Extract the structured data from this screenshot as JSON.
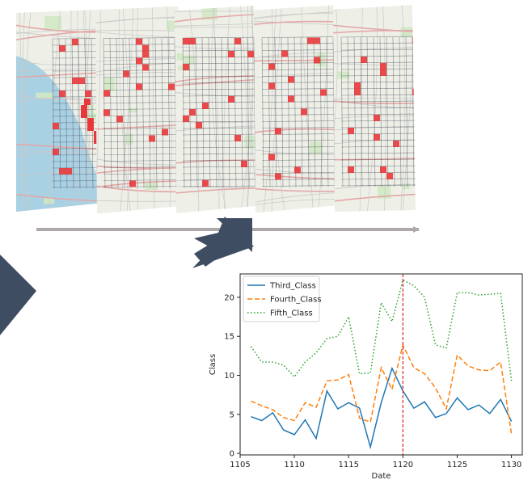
{
  "illustration": {
    "map_tiles": 5,
    "colors": {
      "water": "#a9d1e4",
      "land": "#eef0e8",
      "park": "#cfe8c4",
      "road_major": "#e3a7a7",
      "road_minor": "#c9c9c9",
      "grid": "#2f3240",
      "hotspot": "#e8383b",
      "timeline_arrow": "#b0a9ab",
      "chevron": "#3f4d63"
    }
  },
  "chart_data": {
    "type": "line",
    "xlabel": "Date",
    "ylabel": "Class",
    "xlim": [
      1105,
      1131
    ],
    "ylim": [
      -0.2,
      23
    ],
    "xticks": [
      1105,
      1110,
      1115,
      1120,
      1125,
      1130
    ],
    "yticks": [
      0,
      5,
      10,
      15,
      20
    ],
    "grid": false,
    "legend": "top-left",
    "vline": {
      "x": 1120,
      "color": "#d62728",
      "style": "dashed"
    },
    "x": [
      1106,
      1107,
      1108,
      1109,
      1110,
      1111,
      1112,
      1113,
      1114,
      1115,
      1116,
      1117,
      1118,
      1119,
      1120,
      1121,
      1122,
      1123,
      1124,
      1125,
      1126,
      1127,
      1128,
      1129,
      1130
    ],
    "series": [
      {
        "name": "Third_Class",
        "color": "#1f77b4",
        "style": "solid",
        "values": [
          4.7,
          4.2,
          5.2,
          3.0,
          2.4,
          4.3,
          1.9,
          8.0,
          5.7,
          6.5,
          5.8,
          0.8,
          6.5,
          10.9,
          8.0,
          5.8,
          6.6,
          4.6,
          5.1,
          7.1,
          5.6,
          6.2,
          5.1,
          6.9,
          4.1
        ]
      },
      {
        "name": "Fourth_Class",
        "color": "#ff7f0e",
        "style": "dashed",
        "values": [
          6.7,
          6.1,
          5.6,
          4.6,
          4.2,
          6.5,
          5.9,
          9.3,
          9.4,
          10.1,
          4.5,
          4.0,
          11.0,
          8.2,
          13.9,
          11.0,
          10.2,
          8.4,
          5.7,
          12.6,
          11.2,
          10.7,
          10.6,
          11.7,
          2.5
        ]
      },
      {
        "name": "Fifth_Class",
        "color": "#2ca02c",
        "style": "dotted",
        "values": [
          13.7,
          11.7,
          11.7,
          11.3,
          9.8,
          11.7,
          12.9,
          14.7,
          15.0,
          17.5,
          10.2,
          10.3,
          19.3,
          16.9,
          22.2,
          21.5,
          20.0,
          13.9,
          13.5,
          20.6,
          20.6,
          20.3,
          20.4,
          20.5,
          9.3
        ]
      }
    ]
  }
}
